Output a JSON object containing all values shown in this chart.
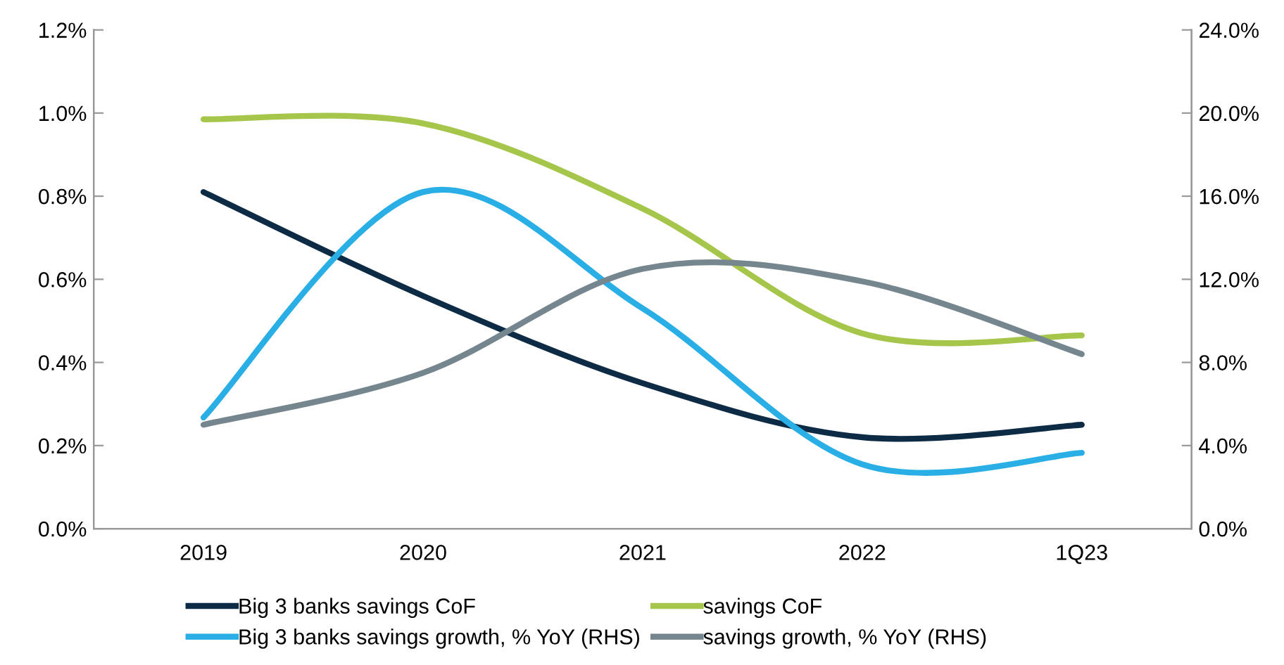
{
  "chart_data": {
    "type": "line",
    "categories": [
      "2019",
      "2020",
      "2021",
      "2022",
      "1Q23"
    ],
    "series": [
      {
        "name": "Big 3 banks savings CoF",
        "color": "#0d2b45",
        "values": [
          0.81,
          0.56,
          0.35,
          0.22,
          0.25
        ]
      },
      {
        "name": "savings CoF",
        "color": "#a5c64a",
        "values": [
          0.985,
          0.975,
          0.77,
          0.47,
          0.465
        ]
      },
      {
        "name": "Big 3 banks savings growth, % YoY (RHS)",
        "color": "#29afe6",
        "axis": "y2",
        "values": [
          5.35,
          16.2,
          10.6,
          3.1,
          3.65
        ]
      },
      {
        "name": "savings growth, % YoY (RHS)",
        "color": "#76868f",
        "axis": "y2",
        "values": [
          5.0,
          7.5,
          12.5,
          11.9,
          8.4
        ]
      }
    ],
    "ylim": [
      0,
      1.2
    ],
    "yticks": [
      {
        "value": 0,
        "label": "0.0%"
      },
      {
        "value": 0.2,
        "label": "0.2%"
      },
      {
        "value": 0.4,
        "label": "0.4%"
      },
      {
        "value": 0.6,
        "label": "0.6%"
      },
      {
        "value": 0.8,
        "label": "0.8%"
      },
      {
        "value": 1.0,
        "label": "1.0%"
      },
      {
        "value": 1.2,
        "label": "1.2%"
      }
    ],
    "y2lim": [
      0,
      24
    ],
    "y2ticks": [
      {
        "value": 0,
        "label": "0.0%"
      },
      {
        "value": 4,
        "label": "4.0%"
      },
      {
        "value": 8,
        "label": "8.0%"
      },
      {
        "value": 12,
        "label": "12.0%"
      },
      {
        "value": 16,
        "label": "16.0%"
      },
      {
        "value": 20,
        "label": "20.0%"
      },
      {
        "value": 24,
        "label": "24.0%"
      }
    ],
    "grid": false,
    "legend": "bottom",
    "marker": "none",
    "line_style": "solid"
  }
}
